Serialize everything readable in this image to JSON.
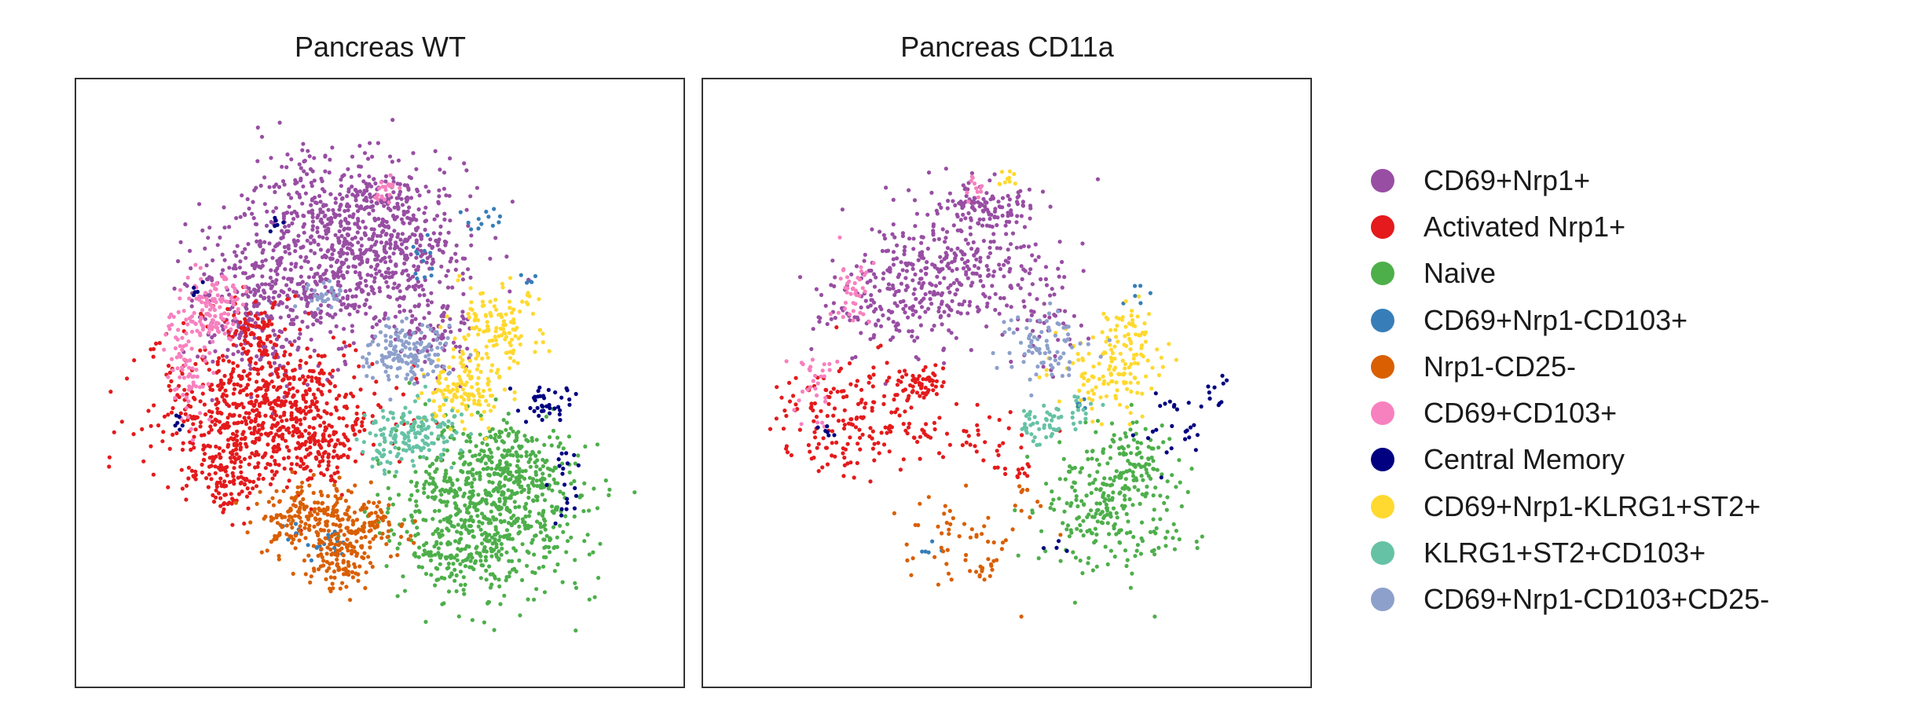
{
  "chart_data": {
    "type": "scatter",
    "xlabel": "",
    "ylabel": "",
    "grid": false,
    "legend_placement": "right",
    "panels": [
      {
        "title": "Pancreas WT",
        "series": [
          {
            "name": "CD69+Nrp1+",
            "color": "#984ea3",
            "clusters": [
              {
                "c": [
                  440,
                  310
                ],
                "s": [
                  85,
                  70
                ],
                "n": 780
              },
              {
                "c": [
                  330,
                  395
                ],
                "s": [
                  55,
                  55
                ],
                "n": 260
              },
              {
                "c": [
                  520,
                  330
                ],
                "s": [
                  45,
                  40
                ],
                "n": 130
              },
              {
                "c": [
                  560,
                  430
                ],
                "s": [
                  30,
                  30
                ],
                "n": 70
              },
              {
                "c": [
                  470,
                  250
                ],
                "s": [
                  40,
                  20
                ],
                "n": 40
              }
            ]
          },
          {
            "name": "Activated Nrp1+",
            "color": "#e41a1c",
            "clusters": [
              {
                "c": [
                  335,
                  520
                ],
                "s": [
                  85,
                  55
                ],
                "n": 720
              },
              {
                "c": [
                  410,
                  575
                ],
                "s": [
                  30,
                  25
                ],
                "n": 70
              },
              {
                "c": [
                  320,
                  415
                ],
                "s": [
                  25,
                  18
                ],
                "n": 60
              },
              {
                "c": [
                  290,
                  600
                ],
                "s": [
                  30,
                  25
                ],
                "n": 60
              },
              {
                "c": [
                  285,
                  620
                ],
                "s": [
                  25,
                  20
                ],
                "n": 40
              }
            ]
          },
          {
            "name": "Naive",
            "color": "#4daf4a",
            "clusters": [
              {
                "c": [
                  620,
                  650
                ],
                "s": [
                  70,
                  65
                ],
                "n": 720
              },
              {
                "c": [
                  650,
                  590
                ],
                "s": [
                  35,
                  30
                ],
                "n": 110
              },
              {
                "c": [
                  580,
                  710
                ],
                "s": [
                  40,
                  20
                ],
                "n": 60
              }
            ]
          },
          {
            "name": "CD69+Nrp1-CD103+",
            "color": "#377eb8",
            "clusters": [
              {
                "c": [
                  615,
                  280
                ],
                "s": [
                  20,
                  10
                ],
                "n": 12
              },
              {
                "c": [
                  540,
                  330
                ],
                "s": [
                  15,
                  15
                ],
                "n": 12
              },
              {
                "c": [
                  670,
                  360
                ],
                "s": [
                  8,
                  8
                ],
                "n": 5
              },
              {
                "c": [
                  400,
                  690
                ],
                "s": [
                  25,
                  12
                ],
                "n": 25
              }
            ]
          },
          {
            "name": "Nrp1-CD25-",
            "color": "#d95f02",
            "clusters": [
              {
                "c": [
                  400,
                  660
                ],
                "s": [
                  40,
                  25
                ],
                "n": 220
              },
              {
                "c": [
                  440,
                  715
                ],
                "s": [
                  28,
                  22
                ],
                "n": 100
              },
              {
                "c": [
                  480,
                  670
                ],
                "s": [
                  25,
                  20
                ],
                "n": 60
              }
            ]
          },
          {
            "name": "CD69+CD103+",
            "color": "#f781bf",
            "clusters": [
              {
                "c": [
                  272,
                  395
                ],
                "s": [
                  22,
                  25
                ],
                "n": 120
              },
              {
                "c": [
                  238,
                  470
                ],
                "s": [
                  15,
                  45
                ],
                "n": 80
              },
              {
                "c": [
                  490,
                  240
                ],
                "s": [
                  10,
                  12
                ],
                "n": 20
              }
            ]
          },
          {
            "name": "Central Memory",
            "color": "#000080",
            "clusters": [
              {
                "c": [
                  700,
                  510
                ],
                "s": [
                  22,
                  15
                ],
                "n": 40
              },
              {
                "c": [
                  720,
                  620
                ],
                "s": [
                  15,
                  30
                ],
                "n": 20
              },
              {
                "c": [
                  350,
                  290
                ],
                "s": [
                  8,
                  8
                ],
                "n": 6
              },
              {
                "c": [
                  250,
                  370
                ],
                "s": [
                  8,
                  8
                ],
                "n": 5
              },
              {
                "c": [
                  230,
                  540
                ],
                "s": [
                  8,
                  8
                ],
                "n": 6
              }
            ]
          },
          {
            "name": "CD69+Nrp1-KLRG1+ST2+",
            "color": "#ffd92f",
            "clusters": [
              {
                "c": [
                  630,
                  420
                ],
                "s": [
                  35,
                  30
                ],
                "n": 140
              },
              {
                "c": [
                  590,
                  500
                ],
                "s": [
                  30,
                  25
                ],
                "n": 120
              }
            ]
          },
          {
            "name": "KLRG1+ST2+CD103+",
            "color": "#66c2a5",
            "clusters": [
              {
                "c": [
                  530,
                  550
                ],
                "s": [
                  35,
                  20
                ],
                "n": 130
              },
              {
                "c": [
                  490,
                  570
                ],
                "s": [
                  15,
                  15
                ],
                "n": 30
              }
            ]
          },
          {
            "name": "CD69+Nrp1-CD103+CD25-",
            "color": "#8da0cb",
            "clusters": [
              {
                "c": [
                  515,
                  450
                ],
                "s": [
                  32,
                  22
                ],
                "n": 150
              },
              {
                "c": [
                  410,
                  380
                ],
                "s": [
                  15,
                  12
                ],
                "n": 30
              }
            ]
          }
        ]
      },
      {
        "title": "Pancreas CD11a",
        "series": [
          {
            "name": "CD69+Nrp1+",
            "color": "#984ea3",
            "clusters": [
              {
                "c": [
                  1210,
                  340
                ],
                "s": [
                  70,
                  50
                ],
                "n": 350
              },
              {
                "c": [
                  1260,
                  260
                ],
                "s": [
                  35,
                  20
                ],
                "n": 100
              },
              {
                "c": [
                  1120,
                  400
                ],
                "s": [
                  50,
                  35
                ],
                "n": 90
              },
              {
                "c": [
                  1330,
                  400
                ],
                "s": [
                  25,
                  40
                ],
                "n": 50
              }
            ]
          },
          {
            "name": "Activated Nrp1+",
            "color": "#e41a1c",
            "clusters": [
              {
                "c": [
                  1080,
                  530
                ],
                "s": [
                  55,
                  45
                ],
                "n": 180
              },
              {
                "c": [
                  1175,
                  490
                ],
                "s": [
                  15,
                  12
                ],
                "n": 50
              },
              {
                "c": [
                  1230,
                  560
                ],
                "s": [
                  50,
                  20
                ],
                "n": 40
              },
              {
                "c": [
                  1300,
                  600
                ],
                "s": [
                  30,
                  15
                ],
                "n": 15
              }
            ]
          },
          {
            "name": "Naive",
            "color": "#4daf4a",
            "clusters": [
              {
                "c": [
                  1410,
                  640
                ],
                "s": [
                  55,
                  55
                ],
                "n": 260
              },
              {
                "c": [
                  1440,
                  580
                ],
                "s": [
                  25,
                  25
                ],
                "n": 60
              }
            ]
          },
          {
            "name": "CD69+Nrp1-CD103+",
            "color": "#377eb8",
            "clusters": [
              {
                "c": [
                  1445,
                  375
                ],
                "s": [
                  10,
                  8
                ],
                "n": 6
              },
              {
                "c": [
                  1190,
                  695
                ],
                "s": [
                  10,
                  8
                ],
                "n": 5
              },
              {
                "c": [
                  1375,
                  520
                ],
                "s": [
                  10,
                  8
                ],
                "n": 5
              }
            ]
          },
          {
            "name": "Nrp1-CD25-",
            "color": "#d95f02",
            "clusters": [
              {
                "c": [
                  1230,
                  680
                ],
                "s": [
                  55,
                  35
                ],
                "n": 50
              },
              {
                "c": [
                  1255,
                  725
                ],
                "s": [
                  10,
                  10
                ],
                "n": 15
              },
              {
                "c": [
                  1310,
                  630
                ],
                "s": [
                  15,
                  10
                ],
                "n": 8
              }
            ]
          },
          {
            "name": "CD69+CD103+",
            "color": "#f781bf",
            "clusters": [
              {
                "c": [
                  1085,
                  370
                ],
                "s": [
                  15,
                  25
                ],
                "n": 40
              },
              {
                "c": [
                  1035,
                  480
                ],
                "s": [
                  15,
                  30
                ],
                "n": 30
              },
              {
                "c": [
                  1240,
                  240
                ],
                "s": [
                  10,
                  12
                ],
                "n": 12
              }
            ]
          },
          {
            "name": "Central Memory",
            "color": "#000080",
            "clusters": [
              {
                "c": [
                  1490,
                  540
                ],
                "s": [
                  30,
                  25
                ],
                "n": 25
              },
              {
                "c": [
                  1550,
                  500
                ],
                "s": [
                  12,
                  25
                ],
                "n": 10
              },
              {
                "c": [
                  1050,
                  540
                ],
                "s": [
                  10,
                  10
                ],
                "n": 6
              },
              {
                "c": [
                  1350,
                  690
                ],
                "s": [
                  12,
                  8
                ],
                "n": 4
              }
            ]
          },
          {
            "name": "CD69+Nrp1-KLRG1+ST2+",
            "color": "#ffd92f",
            "clusters": [
              {
                "c": [
                  1410,
                  470
                ],
                "s": [
                  35,
                  40
                ],
                "n": 120
              },
              {
                "c": [
                  1440,
                  430
                ],
                "s": [
                  20,
                  25
                ],
                "n": 40
              },
              {
                "c": [
                  1280,
                  225
                ],
                "s": [
                  15,
                  10
                ],
                "n": 10
              }
            ]
          },
          {
            "name": "KLRG1+ST2+CD103+",
            "color": "#66c2a5",
            "clusters": [
              {
                "c": [
                  1330,
                  540
                ],
                "s": [
                  25,
                  15
                ],
                "n": 50
              },
              {
                "c": [
                  1380,
                  520
                ],
                "s": [
                  15,
                  10
                ],
                "n": 10
              }
            ]
          },
          {
            "name": "CD69+Nrp1-CD103+CD25-",
            "color": "#8da0cb",
            "clusters": [
              {
                "c": [
                  1330,
                  440
                ],
                "s": [
                  35,
                  25
                ],
                "n": 80
              }
            ]
          }
        ]
      }
    ]
  }
}
